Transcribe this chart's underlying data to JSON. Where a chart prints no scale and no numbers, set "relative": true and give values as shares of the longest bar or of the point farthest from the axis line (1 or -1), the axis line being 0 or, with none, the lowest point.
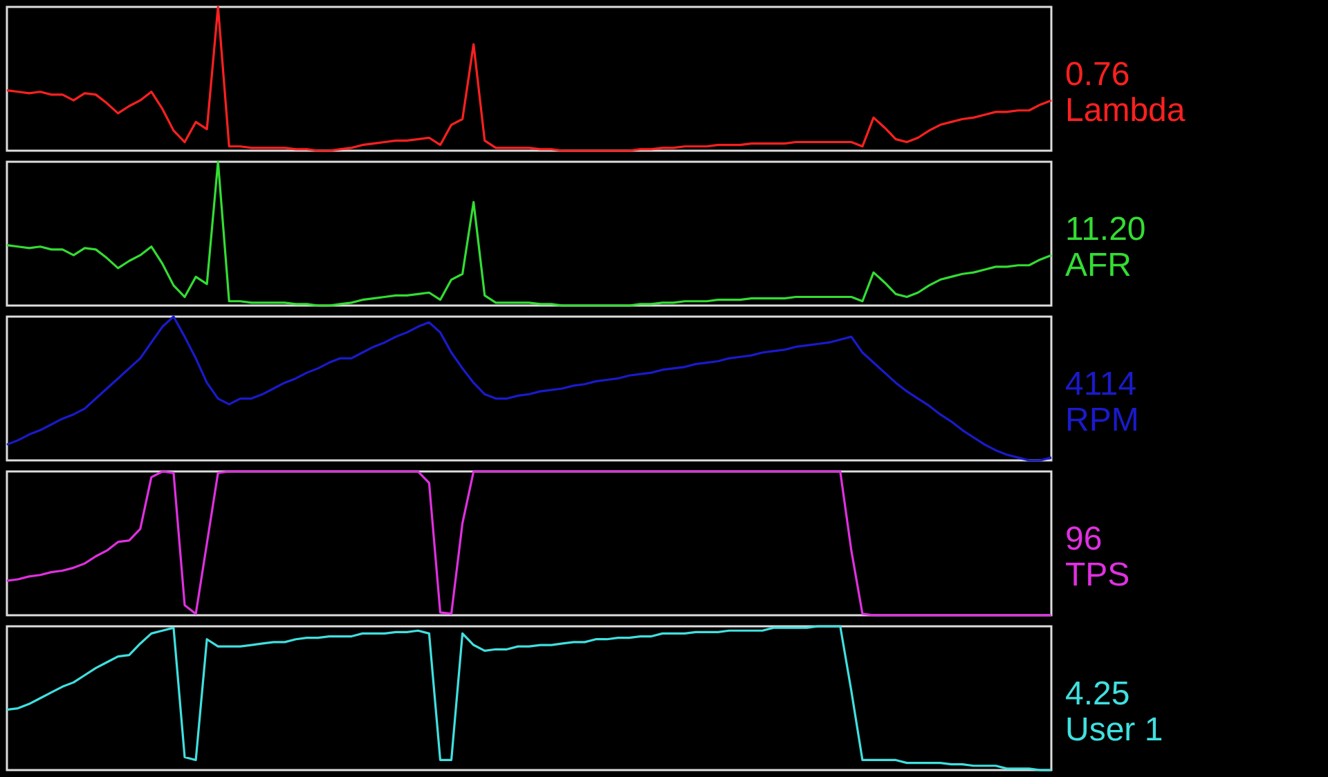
{
  "chart_data": [
    {
      "type": "line",
      "relative": true,
      "tick_labels": false,
      "annotations": [
        "0.76"
      ],
      "categories": [
        null,
        null,
        null,
        null,
        null,
        null,
        null,
        null,
        null,
        null,
        null,
        null,
        null,
        null,
        null,
        null,
        null,
        null,
        null,
        null,
        null,
        null,
        null,
        null,
        null,
        null,
        null,
        null,
        null,
        null,
        null,
        null,
        null,
        null,
        null,
        null,
        null,
        null,
        null,
        null,
        null,
        null,
        null,
        null,
        null,
        null,
        null,
        null,
        null,
        null,
        null,
        null,
        null,
        null,
        null,
        null,
        null,
        null,
        null,
        null,
        null,
        null,
        null,
        null,
        null,
        null,
        null,
        null,
        null,
        null,
        null,
        null,
        null,
        null,
        null,
        null,
        null,
        null,
        null,
        null,
        null,
        null,
        null,
        null,
        null,
        null,
        null,
        null,
        null,
        null,
        null,
        null,
        null,
        null,
        null
      ],
      "series": [
        {
          "name": "Lambda",
          "color": "#ff2020",
          "values": [
            0.42,
            0.41,
            0.4,
            0.41,
            0.39,
            0.39,
            0.35,
            0.4,
            0.39,
            0.33,
            0.26,
            0.31,
            0.35,
            0.41,
            0.29,
            0.14,
            0.06,
            0.2,
            0.15,
            1,
            0.03,
            0.03,
            0.02,
            0.02,
            0.02,
            0.02,
            0.01,
            0.01,
            0,
            0,
            0.01,
            0.02,
            0.04,
            0.05,
            0.06,
            0.07,
            0.07,
            0.08,
            0.09,
            0.04,
            0.18,
            0.22,
            0.74,
            0.07,
            0.02,
            0.02,
            0.02,
            0.02,
            0.01,
            0.01,
            0,
            0,
            0,
            0,
            0,
            0,
            0,
            0.01,
            0.01,
            0.02,
            0.02,
            0.03,
            0.03,
            0.03,
            0.04,
            0.04,
            0.04,
            0.05,
            0.05,
            0.05,
            0.05,
            0.06,
            0.06,
            0.06,
            0.06,
            0.06,
            0.06,
            0.03,
            0.23,
            0.16,
            0.08,
            0.06,
            0.09,
            0.14,
            0.18,
            0.2,
            0.22,
            0.23,
            0.25,
            0.27,
            0.27,
            0.28,
            0.28,
            0.32,
            0.35
          ]
        }
      ]
    },
    {
      "type": "line",
      "relative": true,
      "tick_labels": false,
      "annotations": [
        "11.20"
      ],
      "categories": [
        null,
        null,
        null,
        null,
        null,
        null,
        null,
        null,
        null,
        null,
        null,
        null,
        null,
        null,
        null,
        null,
        null,
        null,
        null,
        null,
        null,
        null,
        null,
        null,
        null,
        null,
        null,
        null,
        null,
        null,
        null,
        null,
        null,
        null,
        null,
        null,
        null,
        null,
        null,
        null,
        null,
        null,
        null,
        null,
        null,
        null,
        null,
        null,
        null,
        null,
        null,
        null,
        null,
        null,
        null,
        null,
        null,
        null,
        null,
        null,
        null,
        null,
        null,
        null,
        null,
        null,
        null,
        null,
        null,
        null,
        null,
        null,
        null,
        null,
        null,
        null,
        null,
        null,
        null,
        null,
        null,
        null,
        null,
        null,
        null,
        null,
        null,
        null,
        null,
        null,
        null,
        null,
        null,
        null,
        null
      ],
      "series": [
        {
          "name": "AFR",
          "color": "#33dd33",
          "values": [
            0.42,
            0.41,
            0.4,
            0.41,
            0.39,
            0.39,
            0.35,
            0.4,
            0.39,
            0.33,
            0.26,
            0.31,
            0.35,
            0.41,
            0.29,
            0.14,
            0.06,
            0.2,
            0.15,
            1,
            0.03,
            0.03,
            0.02,
            0.02,
            0.02,
            0.02,
            0.01,
            0.01,
            0,
            0,
            0.01,
            0.02,
            0.04,
            0.05,
            0.06,
            0.07,
            0.07,
            0.08,
            0.09,
            0.04,
            0.18,
            0.22,
            0.72,
            0.07,
            0.02,
            0.02,
            0.02,
            0.02,
            0.01,
            0.01,
            0,
            0,
            0,
            0,
            0,
            0,
            0,
            0.01,
            0.01,
            0.02,
            0.02,
            0.03,
            0.03,
            0.03,
            0.04,
            0.04,
            0.04,
            0.05,
            0.05,
            0.05,
            0.05,
            0.06,
            0.06,
            0.06,
            0.06,
            0.06,
            0.06,
            0.03,
            0.23,
            0.16,
            0.08,
            0.06,
            0.09,
            0.14,
            0.18,
            0.2,
            0.22,
            0.23,
            0.25,
            0.27,
            0.27,
            0.28,
            0.28,
            0.32,
            0.35
          ]
        }
      ]
    },
    {
      "type": "line",
      "relative": true,
      "tick_labels": false,
      "annotations": [
        "4114"
      ],
      "categories": [
        null,
        null,
        null,
        null,
        null,
        null,
        null,
        null,
        null,
        null,
        null,
        null,
        null,
        null,
        null,
        null,
        null,
        null,
        null,
        null,
        null,
        null,
        null,
        null,
        null,
        null,
        null,
        null,
        null,
        null,
        null,
        null,
        null,
        null,
        null,
        null,
        null,
        null,
        null,
        null,
        null,
        null,
        null,
        null,
        null,
        null,
        null,
        null,
        null,
        null,
        null,
        null,
        null,
        null,
        null,
        null,
        null,
        null,
        null,
        null,
        null,
        null,
        null,
        null,
        null,
        null,
        null,
        null,
        null,
        null,
        null,
        null,
        null,
        null,
        null,
        null,
        null,
        null,
        null,
        null,
        null,
        null,
        null,
        null,
        null,
        null,
        null,
        null,
        null,
        null,
        null,
        null,
        null,
        null,
        null
      ],
      "series": [
        {
          "name": "RPM",
          "color": "#1a1acc",
          "values": [
            0.11,
            0.14,
            0.18,
            0.21,
            0.25,
            0.29,
            0.32,
            0.36,
            0.43,
            0.5,
            0.57,
            0.64,
            0.71,
            0.82,
            0.93,
            1,
            0.86,
            0.71,
            0.54,
            0.43,
            0.39,
            0.43,
            0.43,
            0.46,
            0.5,
            0.54,
            0.57,
            0.61,
            0.64,
            0.68,
            0.71,
            0.71,
            0.75,
            0.79,
            0.82,
            0.86,
            0.89,
            0.93,
            0.96,
            0.89,
            0.75,
            0.64,
            0.54,
            0.46,
            0.43,
            0.43,
            0.45,
            0.46,
            0.48,
            0.49,
            0.5,
            0.52,
            0.53,
            0.55,
            0.56,
            0.57,
            0.59,
            0.6,
            0.61,
            0.63,
            0.64,
            0.65,
            0.67,
            0.68,
            0.69,
            0.71,
            0.72,
            0.73,
            0.75,
            0.76,
            0.77,
            0.79,
            0.8,
            0.81,
            0.82,
            0.84,
            0.86,
            0.75,
            0.68,
            0.61,
            0.54,
            0.48,
            0.43,
            0.38,
            0.32,
            0.27,
            0.21,
            0.16,
            0.11,
            0.07,
            0.04,
            0.02,
            0,
            0,
            0.02
          ]
        }
      ]
    },
    {
      "type": "line",
      "relative": true,
      "tick_labels": false,
      "annotations": [
        "96"
      ],
      "categories": [
        null,
        null,
        null,
        null,
        null,
        null,
        null,
        null,
        null,
        null,
        null,
        null,
        null,
        null,
        null,
        null,
        null,
        null,
        null,
        null,
        null,
        null,
        null,
        null,
        null,
        null,
        null,
        null,
        null,
        null,
        null,
        null,
        null,
        null,
        null,
        null,
        null,
        null,
        null,
        null,
        null,
        null,
        null,
        null,
        null,
        null,
        null,
        null,
        null,
        null,
        null,
        null,
        null,
        null,
        null,
        null,
        null,
        null,
        null,
        null,
        null,
        null,
        null,
        null,
        null,
        null,
        null,
        null,
        null,
        null,
        null,
        null,
        null,
        null,
        null,
        null,
        null,
        null,
        null,
        null,
        null,
        null,
        null,
        null,
        null,
        null,
        null,
        null,
        null,
        null,
        null,
        null,
        null,
        null,
        null
      ],
      "series": [
        {
          "name": "TPS",
          "color": "#e030e0",
          "values": [
            0.24,
            0.25,
            0.27,
            0.28,
            0.3,
            0.31,
            0.33,
            0.36,
            0.41,
            0.45,
            0.51,
            0.52,
            0.6,
            0.96,
            1,
            0.99,
            0.07,
            0.01,
            0.5,
            0.99,
            1,
            1,
            1,
            1,
            1,
            1,
            1,
            1,
            1,
            1,
            1,
            1,
            1,
            1,
            1,
            1,
            1,
            1,
            0.92,
            0.02,
            0.01,
            0.64,
            1,
            1,
            1,
            1,
            1,
            1,
            1,
            1,
            1,
            1,
            1,
            1,
            1,
            1,
            1,
            1,
            1,
            1,
            1,
            1,
            1,
            1,
            1,
            1,
            1,
            1,
            1,
            1,
            1,
            1,
            1,
            1,
            1,
            1,
            0.45,
            0.01,
            0,
            0,
            0,
            0,
            0,
            0,
            0,
            0,
            0,
            0,
            0,
            0,
            0,
            0,
            0,
            0,
            0
          ]
        }
      ]
    },
    {
      "type": "line",
      "relative": true,
      "tick_labels": false,
      "annotations": [
        "4.25"
      ],
      "categories": [
        null,
        null,
        null,
        null,
        null,
        null,
        null,
        null,
        null,
        null,
        null,
        null,
        null,
        null,
        null,
        null,
        null,
        null,
        null,
        null,
        null,
        null,
        null,
        null,
        null,
        null,
        null,
        null,
        null,
        null,
        null,
        null,
        null,
        null,
        null,
        null,
        null,
        null,
        null,
        null,
        null,
        null,
        null,
        null,
        null,
        null,
        null,
        null,
        null,
        null,
        null,
        null,
        null,
        null,
        null,
        null,
        null,
        null,
        null,
        null,
        null,
        null,
        null,
        null,
        null,
        null,
        null,
        null,
        null,
        null,
        null,
        null,
        null,
        null,
        null,
        null,
        null,
        null,
        null,
        null,
        null,
        null,
        null,
        null,
        null,
        null,
        null,
        null,
        null,
        null,
        null,
        null,
        null,
        null,
        null
      ],
      "series": [
        {
          "name": "User 1",
          "color": "#40e0e0",
          "values": [
            0.42,
            0.43,
            0.46,
            0.5,
            0.54,
            0.58,
            0.61,
            0.66,
            0.71,
            0.75,
            0.79,
            0.8,
            0.88,
            0.95,
            0.97,
            0.99,
            0.09,
            0.07,
            0.91,
            0.86,
            0.86,
            0.86,
            0.87,
            0.88,
            0.89,
            0.89,
            0.91,
            0.92,
            0.92,
            0.93,
            0.93,
            0.93,
            0.95,
            0.95,
            0.95,
            0.96,
            0.96,
            0.97,
            0.95,
            0.07,
            0.07,
            0.95,
            0.87,
            0.83,
            0.84,
            0.84,
            0.86,
            0.86,
            0.87,
            0.87,
            0.88,
            0.89,
            0.89,
            0.91,
            0.91,
            0.92,
            0.92,
            0.93,
            0.93,
            0.95,
            0.95,
            0.95,
            0.96,
            0.96,
            0.96,
            0.97,
            0.97,
            0.97,
            0.97,
            0.99,
            0.99,
            0.99,
            0.99,
            1,
            1,
            1,
            0.55,
            0.07,
            0.07,
            0.07,
            0.07,
            0.05,
            0.05,
            0.05,
            0.05,
            0.04,
            0.04,
            0.03,
            0.03,
            0.03,
            0.01,
            0.01,
            0.01,
            0,
            0
          ]
        }
      ]
    }
  ]
}
